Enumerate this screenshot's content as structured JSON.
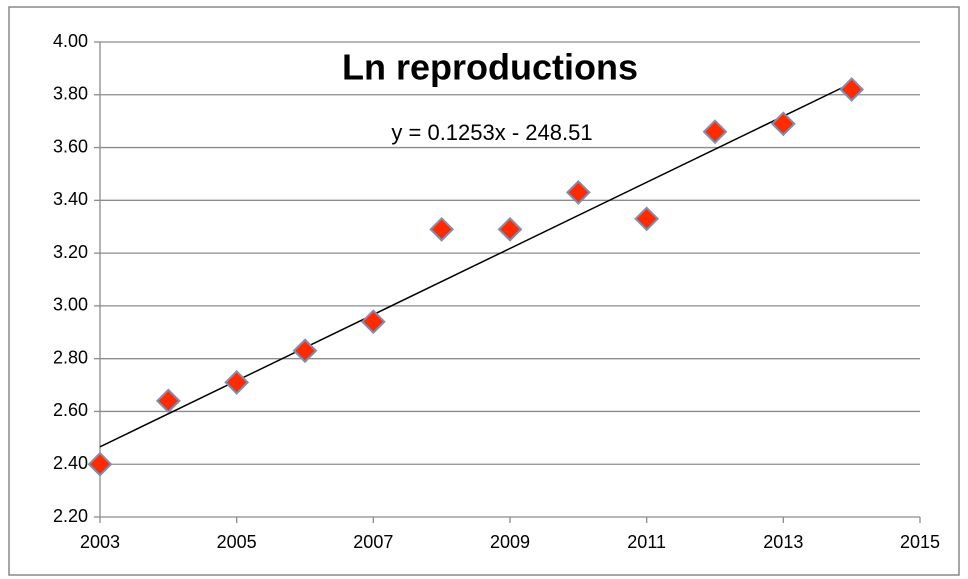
{
  "chart_data": {
    "type": "scatter",
    "title": "Ln reproductions",
    "x": [
      2003,
      2004,
      2005,
      2006,
      2007,
      2008,
      2009,
      2010,
      2011,
      2012,
      2013,
      2014
    ],
    "values": [
      2.4,
      2.64,
      2.71,
      2.83,
      2.94,
      3.29,
      3.29,
      3.43,
      3.33,
      3.66,
      3.69,
      3.82
    ],
    "color": "#ff2a00",
    "xlim": [
      2003,
      2015
    ],
    "xticks": [
      2003,
      2005,
      2007,
      2009,
      2011,
      2013,
      2015
    ],
    "ylim": [
      2.2,
      4.0
    ],
    "yticks": [
      {
        "value": 2.2,
        "label": "2.20"
      },
      {
        "value": 2.4,
        "label": "2.40"
      },
      {
        "value": 2.6,
        "label": "2.60"
      },
      {
        "value": 2.8,
        "label": "2.80"
      },
      {
        "value": 3.0,
        "label": "3.00"
      },
      {
        "value": 3.2,
        "label": "3.20"
      },
      {
        "value": 3.4,
        "label": "3.40"
      },
      {
        "value": 3.6,
        "label": "3.60"
      },
      {
        "value": 3.8,
        "label": "3.80"
      },
      {
        "value": 4.0,
        "label": "4.00"
      }
    ],
    "grid": true,
    "trendline": {
      "label": "y = 0.1253x - 248.51",
      "slope": 0.1253,
      "intercept": -248.51
    }
  }
}
